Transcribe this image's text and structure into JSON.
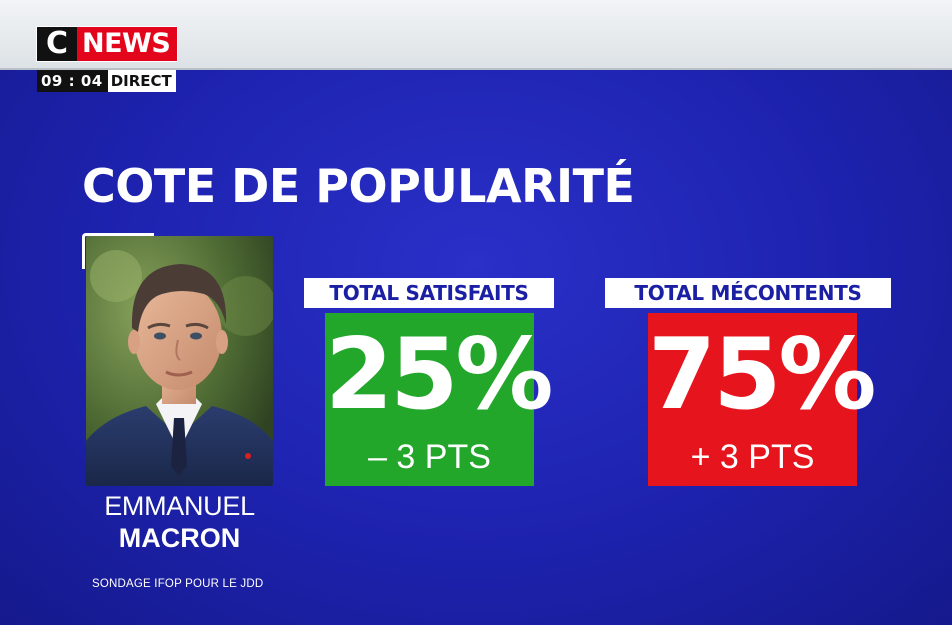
{
  "channel": {
    "logo_c": "C",
    "logo_news": "NEWS",
    "time": "09 : 04",
    "live_label": "DIRECT"
  },
  "title": "COTE DE POPULARITÉ",
  "person": {
    "first_name": "EMMANUEL",
    "last_name": "MACRON"
  },
  "stats": {
    "satisfied": {
      "label": "TOTAL SATISFAITS",
      "value": "25%",
      "change": "– 3 PTS",
      "color": "#22a72b"
    },
    "discontent": {
      "label": "TOTAL MÉCONTENTS",
      "value": "75%",
      "change": "+ 3 PTS",
      "color": "#e5141d"
    }
  },
  "source": "SONDAGE IFOP POUR LE JDD",
  "colors": {
    "background": "#1d22ae",
    "label_text": "#1b1fa4",
    "brand_red": "#e3051b"
  },
  "icons": {
    "portrait": "portrait-photo"
  }
}
